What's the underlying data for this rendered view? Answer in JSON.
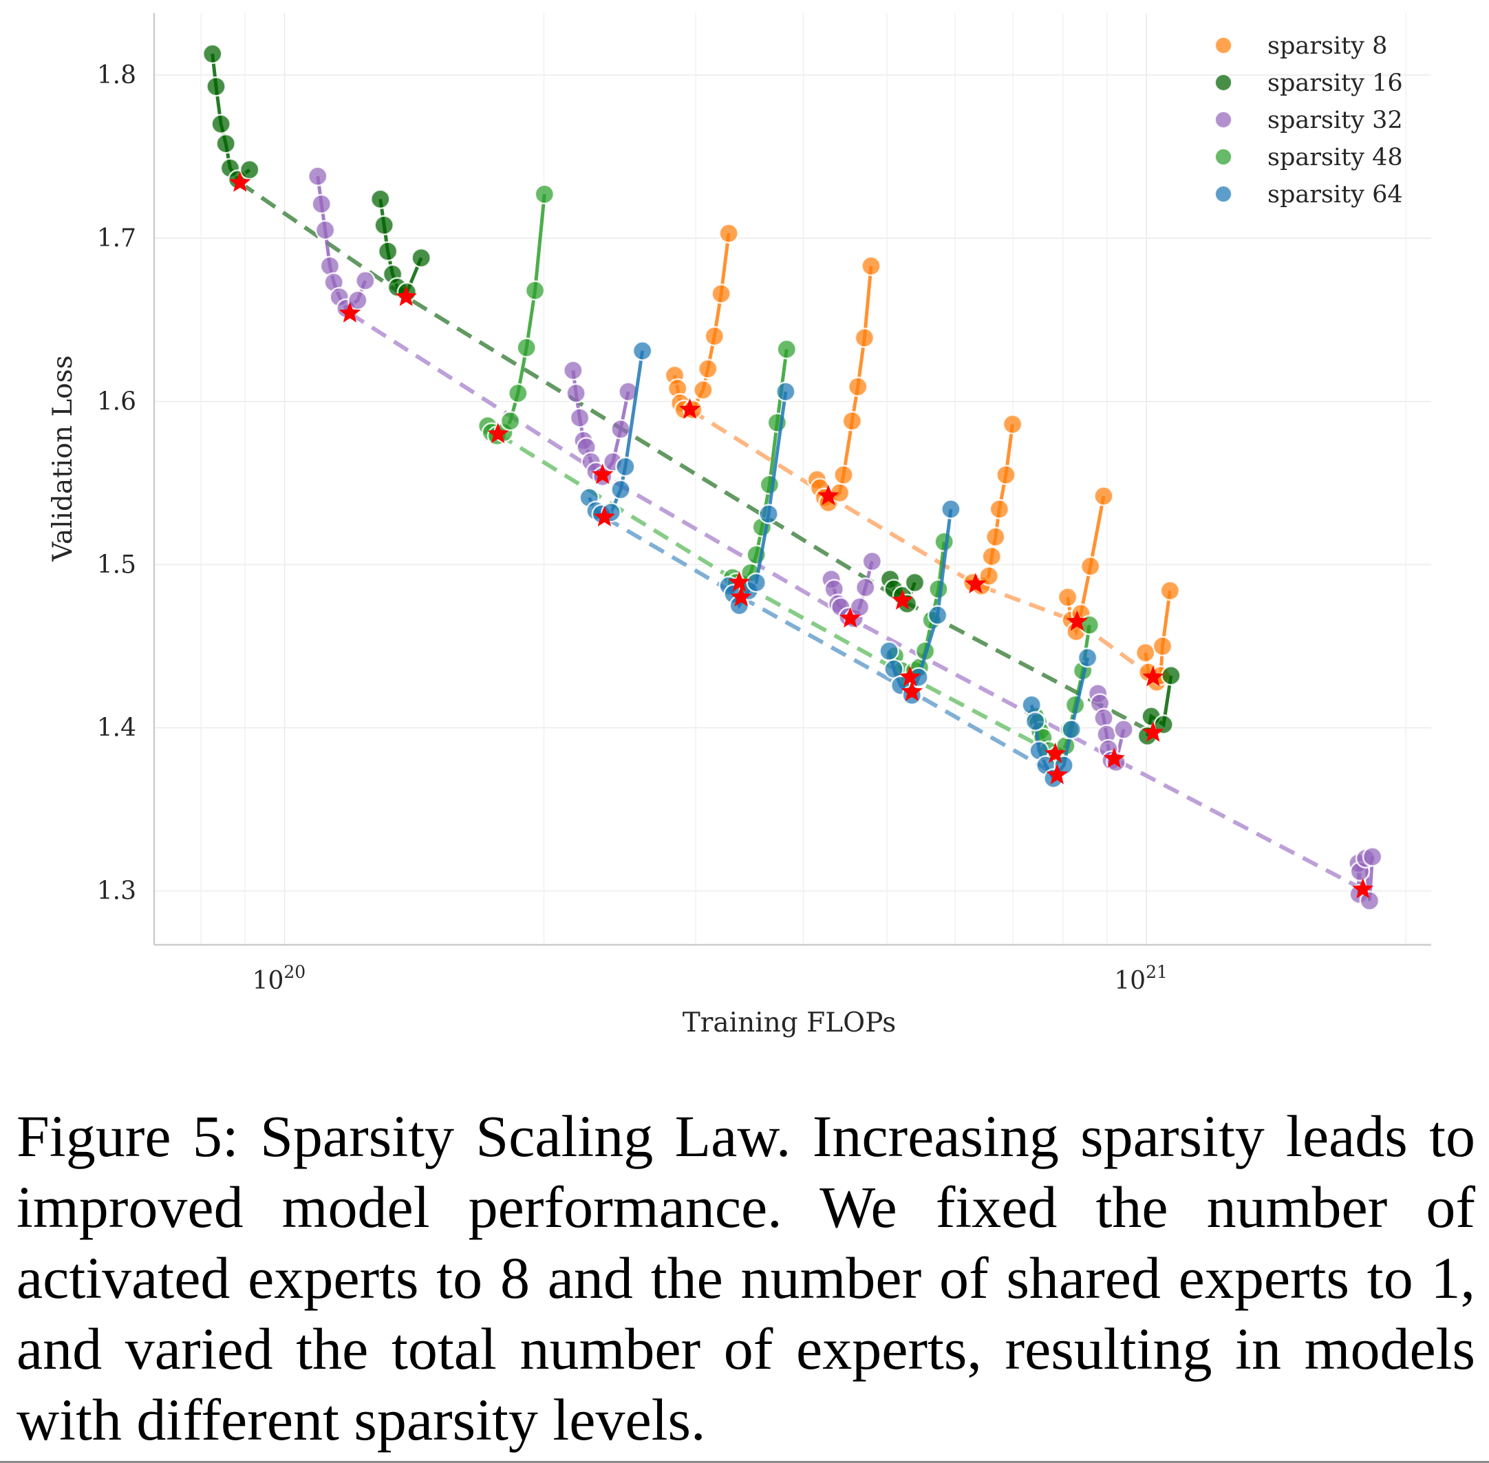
{
  "caption": "Figure 5: Sparsity Scaling Law. Increasing sparsity leads to improved model performance. We fixed the number of activated experts to 8 and the number of shared experts to 1, and varied the total number of experts, resulting in models with different sparsity levels.",
  "chart_data": {
    "type": "scatter",
    "title": "",
    "xlabel": "Training FLOPs",
    "ylabel": "Validation Loss",
    "xscale": "log",
    "xlim": [
      7.06e+19,
      2.14e+21
    ],
    "ylim": [
      1.267,
      1.838
    ],
    "grid": true,
    "legend_position": "top-right",
    "x_ticks": [
      {
        "value": 1e+20,
        "base": "10",
        "exp": "20"
      },
      {
        "value": 1e+21,
        "base": "10",
        "exp": "21"
      }
    ],
    "x_minor_gridlines": [
      8e+19,
      9e+19,
      2e+20,
      3e+20,
      4e+20,
      5e+20,
      6e+20,
      7e+20,
      8e+20,
      9e+20,
      2e+21
    ],
    "y_ticks": [
      {
        "value": 1.8,
        "label": "1.8"
      },
      {
        "value": 1.7,
        "label": "1.7"
      },
      {
        "value": 1.6,
        "label": "1.6"
      },
      {
        "value": 1.5,
        "label": "1.5"
      },
      {
        "value": 1.4,
        "label": "1.4"
      },
      {
        "value": 1.3,
        "label": "1.3"
      }
    ],
    "optimal_marker": {
      "shape": "star",
      "color": "#ff0000"
    },
    "series": [
      {
        "name": "sparsity 8",
        "color": "#ff7f0e",
        "frontier_color": "#ffb27a",
        "groups": [
          {
            "points": [
              [
                2.836e+20,
                1.616
              ],
              [
                2.858e+20,
                1.608
              ],
              [
                2.879e+20,
                1.599
              ],
              [
                2.909e+20,
                1.595
              ],
              [
                2.976e+20,
                1.595
              ],
              [
                3.06e+20,
                1.607
              ],
              [
                3.099e+20,
                1.62
              ],
              [
                3.154e+20,
                1.64
              ],
              [
                3.211e+20,
                1.666
              ],
              [
                3.277e+20,
                1.703
              ]
            ],
            "optimal": [
              2.953e+20,
              1.595
            ]
          },
          {
            "points": [
              [
                4.148e+20,
                1.552
              ],
              [
                4.18e+20,
                1.547
              ],
              [
                4.233e+20,
                1.541
              ],
              [
                4.276e+20,
                1.538
              ],
              [
                4.408e+20,
                1.544
              ],
              [
                4.453e+20,
                1.555
              ],
              [
                4.556e+20,
                1.588
              ],
              [
                4.626e+20,
                1.609
              ],
              [
                4.709e+20,
                1.639
              ],
              [
                4.793e+20,
                1.683
              ]
            ],
            "optimal": [
              4.276e+20,
              1.542
            ]
          },
          {
            "points": [
              [
                6.288e+20,
                1.489
              ],
              [
                6.433e+20,
                1.487
              ],
              [
                6.565e+20,
                1.493
              ],
              [
                6.615e+20,
                1.505
              ],
              [
                6.682e+20,
                1.517
              ],
              [
                6.751e+20,
                1.534
              ],
              [
                6.871e+20,
                1.555
              ],
              [
                6.994e+20,
                1.586
              ]
            ],
            "optimal": [
              6.336e+20,
              1.488
            ]
          },
          {
            "points": [
              [
                8.102e+20,
                1.48
              ],
              [
                8.185e+20,
                1.466
              ],
              [
                8.289e+20,
                1.459
              ],
              [
                8.395e+20,
                1.47
              ],
              [
                8.61e+20,
                1.499
              ],
              [
                8.921e+20,
                1.542
              ]
            ],
            "optimal": [
              8.31e+20,
              1.465
            ]
          },
          {
            "points": [
              [
                9.975e+20,
                1.446
              ],
              [
                1.005e+21,
                1.434
              ],
              [
                1.028e+21,
                1.428
              ],
              [
                1.039e+21,
                1.432
              ],
              [
                1.044e+21,
                1.45
              ],
              [
                1.065e+21,
                1.484
              ]
            ],
            "optimal": [
              1.018e+21,
              1.431
            ]
          }
        ]
      },
      {
        "name": "sparsity 16",
        "color": "#006400",
        "frontier_color": "#5a935a",
        "groups": [
          {
            "points": [
              [
                8.25e+19,
                1.813
              ],
              [
                8.33e+19,
                1.793
              ],
              [
                8.44e+19,
                1.77
              ],
              [
                8.55e+19,
                1.758
              ],
              [
                8.65e+19,
                1.743
              ],
              [
                8.83e+19,
                1.736
              ],
              [
                9.11e+19,
                1.742
              ]
            ],
            "optimal": [
              8.88e+19,
              1.734
            ]
          },
          {
            "points": [
              [
                1.292e+20,
                1.724
              ],
              [
                1.305e+20,
                1.708
              ],
              [
                1.318e+20,
                1.692
              ],
              [
                1.335e+20,
                1.678
              ],
              [
                1.352e+20,
                1.67
              ],
              [
                1.387e+20,
                1.667
              ],
              [
                1.441e+20,
                1.688
              ]
            ],
            "optimal": [
              1.384e+20,
              1.664
            ]
          },
          {
            "points": [
              [
                5.042e+20,
                1.491
              ],
              [
                5.093e+20,
                1.485
              ],
              [
                5.211e+20,
                1.481
              ],
              [
                5.278e+20,
                1.476
              ],
              [
                5.386e+20,
                1.489
              ]
            ],
            "optimal": [
              5.211e+20,
              1.478
            ]
          },
          {
            "points": [
              [
                1.0025e+21,
                1.395
              ],
              [
                1.013e+21,
                1.407
              ],
              [
                1.047e+21,
                1.402
              ],
              [
                1.068e+21,
                1.432
              ]
            ],
            "optimal": [
              1.018e+21,
              1.397
            ]
          }
        ]
      },
      {
        "name": "sparsity 32",
        "color": "#9467bd",
        "frontier_color": "#b99bd6",
        "groups": [
          {
            "points": [
              [
                1.093e+20,
                1.738
              ],
              [
                1.104e+20,
                1.721
              ],
              [
                1.115e+20,
                1.705
              ],
              [
                1.129e+20,
                1.683
              ],
              [
                1.141e+20,
                1.673
              ],
              [
                1.158e+20,
                1.664
              ],
              [
                1.179e+20,
                1.657
              ],
              [
                1.216e+20,
                1.662
              ],
              [
                1.241e+20,
                1.674
              ]
            ],
            "optimal": [
              1.191e+20,
              1.654
            ]
          },
          {
            "points": [
              [
                2.162e+20,
                1.619
              ],
              [
                2.179e+20,
                1.605
              ],
              [
                2.201e+20,
                1.59
              ],
              [
                2.223e+20,
                1.576
              ],
              [
                2.24e+20,
                1.572
              ],
              [
                2.269e+20,
                1.563
              ],
              [
                2.298e+20,
                1.557
              ],
              [
                2.339e+20,
                1.554
              ],
              [
                2.405e+20,
                1.563
              ],
              [
                2.455e+20,
                1.583
              ],
              [
                2.505e+20,
                1.606
              ]
            ],
            "optimal": [
              2.339e+20,
              1.555
            ]
          },
          {
            "points": [
              [
                4.309e+20,
                1.491
              ],
              [
                4.342e+20,
                1.485
              ],
              [
                4.386e+20,
                1.476
              ],
              [
                4.42e+20,
                1.474
              ],
              [
                4.51e+20,
                1.468
              ],
              [
                4.579e+20,
                1.467
              ],
              [
                4.649e+20,
                1.474
              ],
              [
                4.721e+20,
                1.486
              ],
              [
                4.805e+20,
                1.502
              ]
            ],
            "optimal": [
              4.533e+20,
              1.467
            ]
          },
          {
            "points": [
              [
                8.786e+20,
                1.421
              ],
              [
                8.831e+20,
                1.415
              ],
              [
                8.921e+20,
                1.406
              ],
              [
                8.989e+20,
                1.396
              ],
              [
                9.035e+20,
                1.387
              ],
              [
                9.105e+20,
                1.38
              ],
              [
                9.221e+20,
                1.379
              ],
              [
                9.41e+20,
                1.399
              ]
            ],
            "optimal": [
              9.175e+20,
              1.381
            ]
          },
          {
            "points": [
              [
                1.761e+21,
                1.317
              ],
              [
                1.769e+21,
                1.312
              ],
              [
                1.796e+21,
                1.32
              ],
              [
                1.829e+21,
                1.321
              ],
              [
                1.765e+21,
                1.298
              ],
              [
                1.815e+21,
                1.294
              ]
            ],
            "optimal": [
              1.783e+21,
              1.301
            ]
          }
        ]
      },
      {
        "name": "sparsity 48",
        "color": "#2ca02c",
        "frontier_color": "#7fc97f",
        "groups": [
          {
            "points": [
              [
                1.721e+20,
                1.585
              ],
              [
                1.739e+20,
                1.581
              ],
              [
                1.765e+20,
                1.579
              ],
              [
                1.796e+20,
                1.581
              ],
              [
                1.828e+20,
                1.588
              ],
              [
                1.866e+20,
                1.605
              ],
              [
                1.909e+20,
                1.633
              ],
              [
                1.953e+20,
                1.668
              ],
              [
                2.003e+20,
                1.727
              ]
            ],
            "optimal": [
              1.769e+20,
              1.58
            ]
          },
          {
            "points": [
              [
                3.31e+20,
                1.492
              ],
              [
                3.344e+20,
                1.489
              ],
              [
                3.404e+20,
                1.488
              ],
              [
                3.474e+20,
                1.495
              ],
              [
                3.527e+20,
                1.506
              ],
              [
                3.581e+20,
                1.523
              ],
              [
                3.654e+20,
                1.549
              ],
              [
                3.729e+20,
                1.587
              ],
              [
                3.825e+20,
                1.632
              ]
            ],
            "optimal": [
              3.37e+20,
              1.489
            ]
          },
          {
            "points": [
              [
                5.106e+20,
                1.444
              ],
              [
                5.198e+20,
                1.435
              ],
              [
                5.304e+20,
                1.429
              ],
              [
                5.386e+20,
                1.435
              ],
              [
                5.455e+20,
                1.437
              ],
              [
                5.538e+20,
                1.447
              ],
              [
                5.637e+20,
                1.466
              ],
              [
                5.738e+20,
                1.485
              ],
              [
                5.826e+20,
                1.514
              ]
            ],
            "optimal": [
              5.318e+20,
              1.431
            ]
          },
          {
            "points": [
              [
                7.433e+20,
                1.407
              ],
              [
                7.49e+20,
                1.403
              ],
              [
                7.528e+20,
                1.398
              ],
              [
                7.586e+20,
                1.394
              ],
              [
                7.702e+20,
                1.386
              ],
              [
                7.879e+20,
                1.383
              ],
              [
                8.061e+20,
                1.389
              ],
              [
                8.143e+20,
                1.399
              ],
              [
                8.268e+20,
                1.414
              ],
              [
                8.437e+20,
                1.435
              ],
              [
                8.588e+20,
                1.463
              ]
            ],
            "optimal": [
              7.84e+20,
              1.384
            ]
          }
        ]
      },
      {
        "name": "sparsity 64",
        "color": "#1f77b4",
        "frontier_color": "#79abd3",
        "groups": [
          {
            "points": [
              [
                2.257e+20,
                1.541
              ],
              [
                2.298e+20,
                1.533
              ],
              [
                2.333e+20,
                1.531
              ],
              [
                2.393e+20,
                1.532
              ],
              [
                2.455e+20,
                1.546
              ],
              [
                2.486e+20,
                1.56
              ],
              [
                2.602e+20,
                1.631
              ]
            ],
            "optimal": [
              2.351e+20,
              1.529
            ]
          },
          {
            "points": [
              [
                3.277e+20,
                1.487
              ],
              [
                3.319e+20,
                1.482
              ],
              [
                3.37e+20,
                1.475
              ],
              [
                3.456e+20,
                1.484
              ],
              [
                3.527e+20,
                1.489
              ],
              [
                3.645e+20,
                1.531
              ],
              [
                3.815e+20,
                1.606
              ]
            ],
            "optimal": [
              3.387e+20,
              1.48
            ]
          },
          {
            "points": [
              [
                5.029e+20,
                1.447
              ],
              [
                5.093e+20,
                1.436
              ],
              [
                5.185e+20,
                1.426
              ],
              [
                5.345e+20,
                1.42
              ],
              [
                5.441e+20,
                1.431
              ],
              [
                5.724e+20,
                1.469
              ],
              [
                5.931e+20,
                1.534
              ]
            ],
            "optimal": [
              5.345e+20,
              1.422
            ]
          },
          {
            "points": [
              [
                7.358e+20,
                1.414
              ],
              [
                7.433e+20,
                1.404
              ],
              [
                7.509e+20,
                1.386
              ],
              [
                7.644e+20,
                1.377
              ],
              [
                7.8e+20,
                1.369
              ],
              [
                8.02e+20,
                1.377
              ],
              [
                8.185e+20,
                1.399
              ],
              [
                8.545e+20,
                1.443
              ]
            ],
            "optimal": [
              7.879e+20,
              1.371
            ]
          }
        ]
      }
    ]
  }
}
